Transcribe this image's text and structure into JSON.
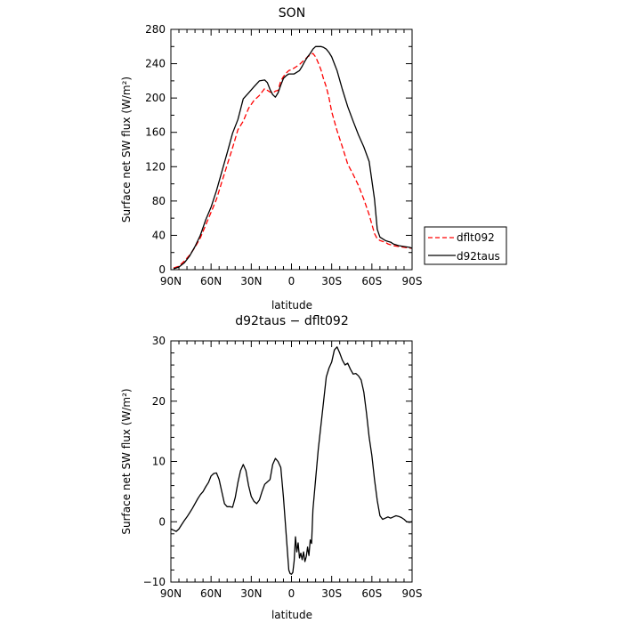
{
  "chart_data": [
    {
      "type": "line",
      "title": "SON",
      "xlabel": "latitude",
      "ylabel": "Surface net SW flux (W/m²)",
      "xlim": [
        90,
        -90
      ],
      "ylim": [
        0,
        280
      ],
      "x_ticks": [
        90,
        60,
        30,
        0,
        -30,
        -60,
        -90
      ],
      "x_tick_labels": [
        "90N",
        "60N",
        "30N",
        "0",
        "30S",
        "60S",
        "90S"
      ],
      "y_ticks": [
        0,
        40,
        80,
        120,
        160,
        200,
        240,
        280
      ],
      "y_tick_labels": [
        "0",
        "40",
        "80",
        "120",
        "160",
        "200",
        "240",
        "280"
      ],
      "legend": {
        "placement": "right",
        "entries": [
          "dflt092",
          "d92taus"
        ]
      },
      "series": [
        {
          "name": "dflt092",
          "color": "#ff0000",
          "dash": "dashed",
          "x": [
            88,
            84,
            80,
            76,
            72,
            68,
            64,
            60,
            56,
            52,
            48,
            44,
            40,
            36,
            32,
            28,
            24,
            20,
            16,
            14,
            12,
            10,
            8,
            6,
            4,
            2,
            0,
            -2,
            -4,
            -6,
            -8,
            -10,
            -12,
            -14,
            -16,
            -18,
            -20,
            -22,
            -24,
            -26,
            -28,
            -30,
            -34,
            -38,
            -42,
            -46,
            -50,
            -54,
            -58,
            -62,
            -64,
            -66,
            -68,
            -70,
            -72,
            -74,
            -76,
            -80,
            -84,
            -88,
            -90
          ],
          "y": [
            2,
            4,
            10,
            17,
            26,
            37,
            52,
            67,
            82,
            102,
            122,
            142,
            163,
            173,
            188,
            197,
            203,
            211,
            207,
            206,
            208,
            209,
            220,
            225,
            229,
            232,
            233,
            235,
            237,
            239,
            242,
            245,
            248,
            250,
            252,
            248,
            241,
            233,
            222,
            213,
            200,
            184,
            162,
            143,
            123,
            111,
            98,
            82,
            64,
            42,
            36,
            34,
            33,
            32,
            30,
            29,
            28,
            27,
            26,
            25,
            25
          ]
        },
        {
          "name": "d92taus",
          "color": "#000000",
          "dash": "solid",
          "x": [
            88,
            84,
            80,
            76,
            72,
            68,
            64,
            60,
            56,
            52,
            48,
            44,
            40,
            36,
            32,
            28,
            24,
            20,
            18,
            16,
            14,
            12,
            10,
            8,
            6,
            4,
            2,
            0,
            -2,
            -4,
            -6,
            -8,
            -10,
            -12,
            -14,
            -16,
            -18,
            -20,
            -22,
            -24,
            -26,
            -28,
            -30,
            -32,
            -34,
            -38,
            -42,
            -46,
            -50,
            -54,
            -58,
            -62,
            -64,
            -66,
            -68,
            -70,
            -72,
            -74,
            -76,
            -80,
            -84,
            -88,
            -90
          ],
          "y": [
            1,
            3,
            8,
            16,
            27,
            40,
            58,
            73,
            92,
            114,
            136,
            159,
            175,
            199,
            206,
            213,
            220,
            221,
            218,
            210,
            204,
            201,
            206,
            215,
            223,
            226,
            228,
            228,
            228,
            230,
            232,
            237,
            243,
            248,
            252,
            257,
            260,
            260,
            260,
            259,
            257,
            253,
            248,
            240,
            232,
            210,
            190,
            173,
            157,
            143,
            126,
            82,
            47,
            38,
            36,
            34,
            33,
            32,
            30,
            28,
            27,
            26,
            25
          ]
        }
      ]
    },
    {
      "type": "line",
      "title": "d92taus − dflt092",
      "xlabel": "latitude",
      "ylabel": "Surface net SW flux (W/m²)",
      "xlim": [
        90,
        -90
      ],
      "ylim": [
        -10,
        30
      ],
      "x_ticks": [
        90,
        60,
        30,
        0,
        -30,
        -60,
        -90
      ],
      "x_tick_labels": [
        "90N",
        "60N",
        "30N",
        "0",
        "30S",
        "60S",
        "90S"
      ],
      "y_ticks": [
        -10,
        0,
        10,
        20,
        30
      ],
      "y_tick_labels": [
        "−10",
        "0",
        "10",
        "20",
        "30"
      ],
      "series": [
        {
          "color": "#000000",
          "dash": "solid",
          "x": [
            90,
            88,
            86,
            84,
            82,
            80,
            78,
            76,
            74,
            72,
            70,
            68,
            66,
            64,
            62,
            60,
            58,
            56,
            54,
            52,
            50,
            48,
            46,
            44,
            42,
            40,
            38,
            36,
            34,
            32,
            30,
            28,
            26,
            24,
            22,
            20,
            18,
            16,
            14,
            12,
            10,
            8,
            6,
            4,
            2,
            1,
            0,
            -1,
            -2,
            -3,
            -4,
            -5,
            -6,
            -7,
            -8,
            -9,
            -10,
            -11,
            -12,
            -13,
            -14,
            -15,
            -16,
            -18,
            -20,
            -22,
            -24,
            -26,
            -28,
            -30,
            -32,
            -34,
            -36,
            -38,
            -40,
            -42,
            -44,
            -46,
            -48,
            -50,
            -52,
            -54,
            -56,
            -58,
            -60,
            -62,
            -64,
            -66,
            -68,
            -70,
            -72,
            -74,
            -76,
            -78,
            -80,
            -82,
            -84,
            -86,
            -88,
            -90
          ],
          "y": [
            -1.2,
            -1.4,
            -1.6,
            -1.2,
            -0.5,
            0.2,
            0.8,
            1.5,
            2.2,
            3.0,
            3.8,
            4.5,
            5.0,
            5.8,
            6.5,
            7.6,
            8.0,
            8.1,
            7.0,
            5.0,
            3.0,
            2.5,
            2.5,
            2.4,
            4.0,
            6.5,
            8.5,
            9.5,
            8.5,
            6.0,
            4.2,
            3.4,
            3.0,
            3.6,
            5.0,
            6.2,
            6.6,
            7.0,
            9.5,
            10.5,
            10.0,
            9.0,
            4.0,
            -2.0,
            -8.0,
            -8.6,
            -8.7,
            -8.4,
            -6.5,
            -2.5,
            -5.0,
            -3.5,
            -6.0,
            -5.2,
            -6.3,
            -5.0,
            -6.6,
            -5.8,
            -4.2,
            -5.6,
            -3.0,
            -3.6,
            2.0,
            7.0,
            12.0,
            16.0,
            20.0,
            24.0,
            25.5,
            26.5,
            28.5,
            29.0,
            28.0,
            26.8,
            26.0,
            26.3,
            25.3,
            24.5,
            24.6,
            24.2,
            23.5,
            21.5,
            18.0,
            14.0,
            11.0,
            7.0,
            3.5,
            1.0,
            0.4,
            0.6,
            0.8,
            0.6,
            0.8,
            1.0,
            0.9,
            0.7,
            0.4,
            0.0,
            -0.1,
            0.0
          ]
        }
      ]
    }
  ]
}
